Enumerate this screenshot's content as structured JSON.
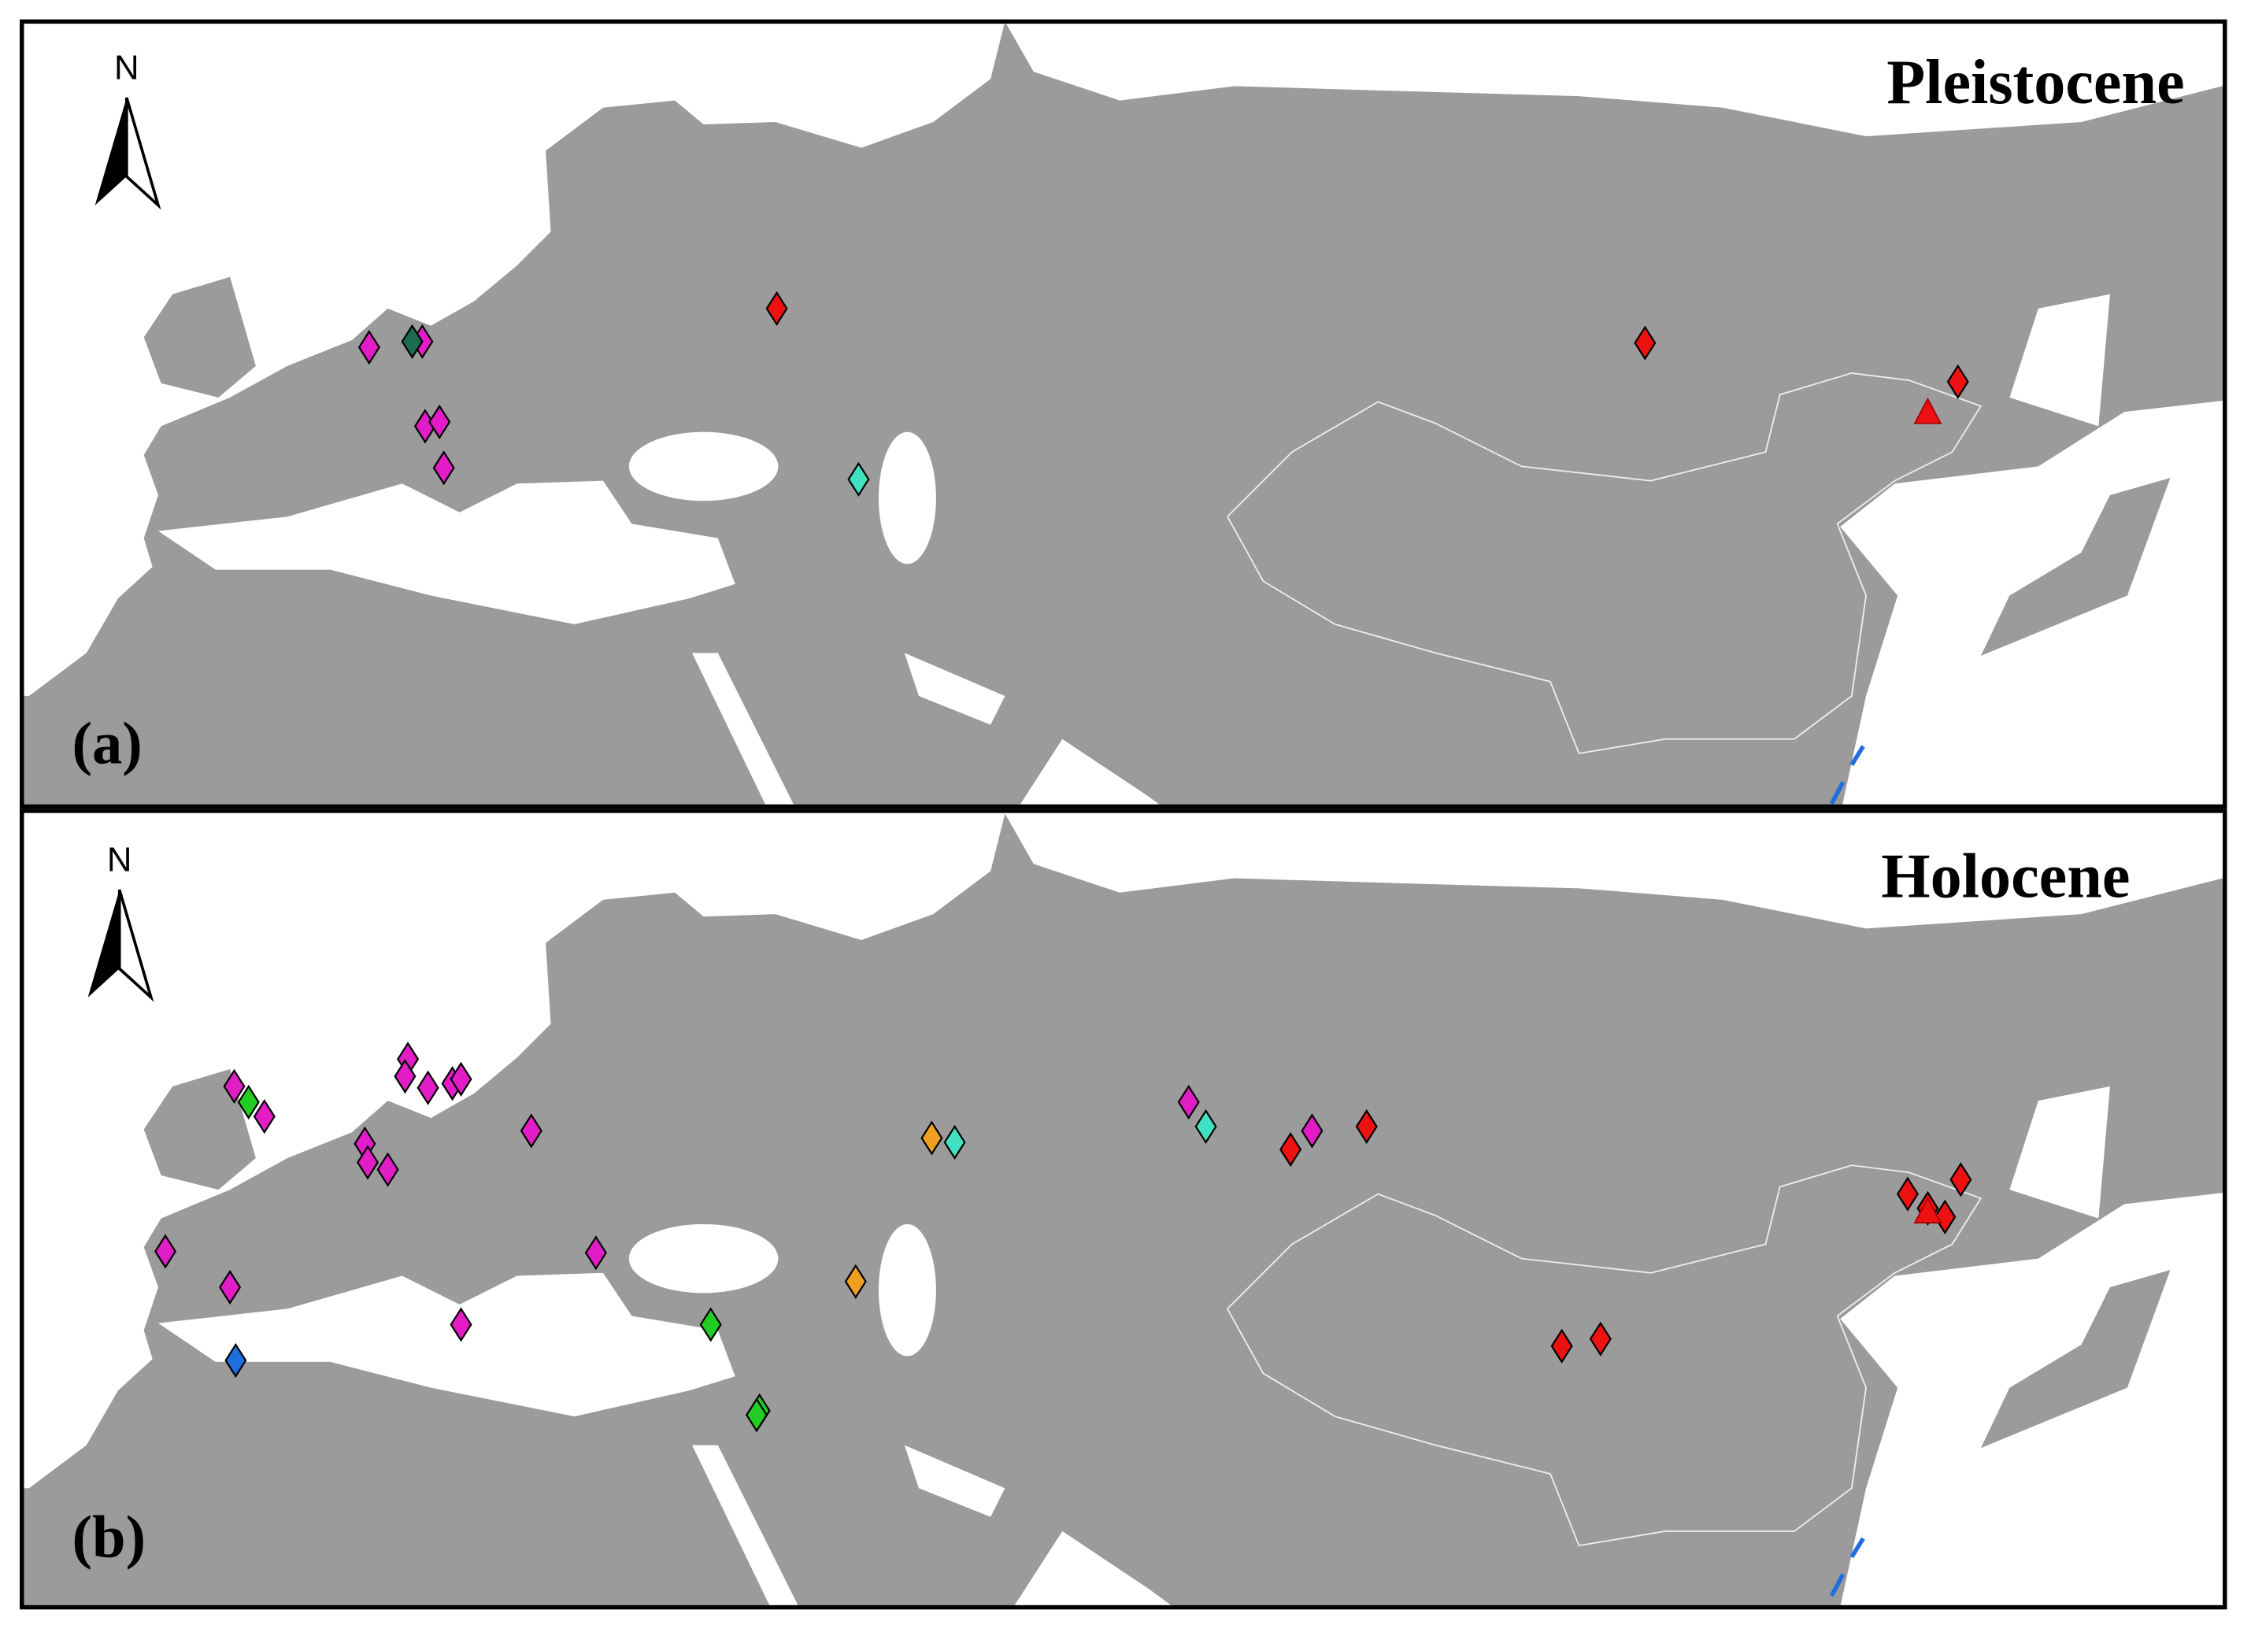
{
  "panels": [
    {
      "label": "(a)",
      "title": "Pleistocene",
      "north": "N"
    },
    {
      "label": "(b)",
      "title": "Holocene",
      "north": "N"
    }
  ]
}
